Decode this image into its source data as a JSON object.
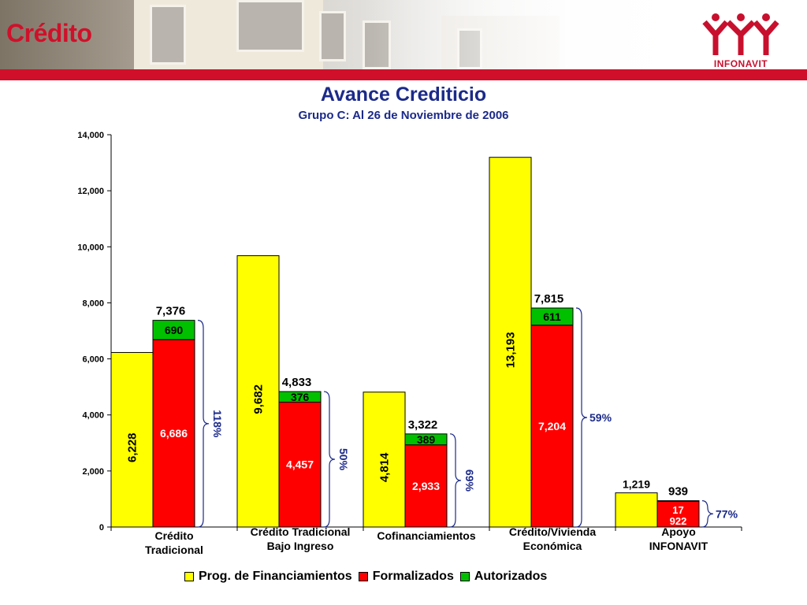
{
  "header": {
    "section_title": "Crédito",
    "logo_text": "INFONAVIT",
    "accent_color": "#d0102a"
  },
  "chart_data": {
    "type": "bar",
    "title": "Avance Crediticio",
    "subtitle": "Grupo C: Al 26 de Noviembre de 2006",
    "ylim": [
      0,
      14000
    ],
    "yticks": [
      "0",
      "2,000",
      "4,000",
      "6,000",
      "8,000",
      "10,000",
      "12,000",
      "14,000"
    ],
    "categories": [
      [
        "Crédito",
        "Tradicional"
      ],
      [
        "Crédito Tradicional",
        "Bajo Ingreso"
      ],
      [
        "Cofinanciamientos"
      ],
      [
        "Crédito/Vivienda",
        "Económica"
      ],
      [
        "Apoyo",
        "INFONAVIT"
      ]
    ],
    "series": [
      {
        "name": "Prog. de Financiamientos",
        "color": "#ffff00",
        "values": [
          6228,
          9682,
          4814,
          13193,
          1219
        ],
        "labels": [
          "6,228",
          "9,682",
          "4,814",
          "13,193",
          "1,219"
        ]
      },
      {
        "name": "Formalizados",
        "color": "#ff0000",
        "values": [
          6686,
          4457,
          2933,
          7204,
          922
        ],
        "labels": [
          "6,686",
          "4,457",
          "2,933",
          "7,204",
          "922"
        ]
      },
      {
        "name": "Autorizados",
        "color": "#00c000",
        "values": [
          690,
          376,
          389,
          611,
          17
        ],
        "labels": [
          "690",
          "376",
          "389",
          "611",
          "17"
        ]
      }
    ],
    "totals": [
      "7,376",
      "4,833",
      "3,322",
      "7,815",
      "939"
    ],
    "percentages": [
      "118%",
      "50%",
      "69%",
      "59%",
      "77%"
    ],
    "grid": false,
    "legend_position": "bottom"
  }
}
